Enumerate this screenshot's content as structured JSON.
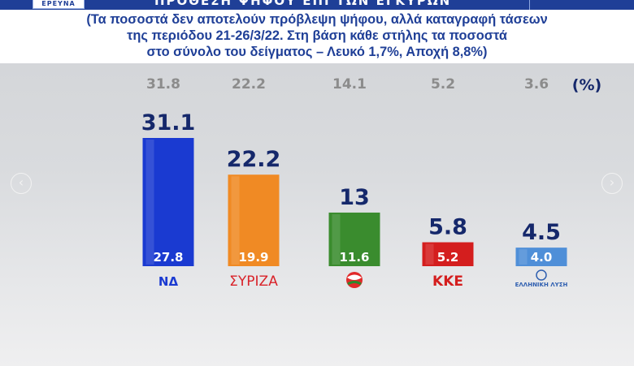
{
  "header": {
    "badge": "ΕΡΕΥΝΑ",
    "title": "ΠΡΟΘΕΣΗ ΨΗΦΟΥ ΕΠΙ ΤΩΝ ΕΓΚΥΡΩΝ",
    "note_lines": [
      "(Τα ποσοστά δεν αποτελούν πρόβλεψη ψήφου, αλλά καταγραφή τάσεων",
      "της περιόδου 21-26/3/22. Στη βάση κάθε στήλης τα ποσοστά",
      "στο σύνολο του δείγματος – Λευκό 1,7%, Αποχή 8,8%)"
    ]
  },
  "navigation": {
    "prev": "‹",
    "next": "›"
  },
  "colors": {
    "label": "#15286b",
    "previous": "#8c8c8c",
    "parties": [
      "#1a3ad1",
      "#f08a24",
      "#3a8c2e",
      "#d41e1e",
      "#4f8fd8"
    ]
  },
  "chart_data": {
    "type": "bar",
    "categories": [
      "ΝΔ",
      "ΣΥΡΙΖΑ",
      "ΠΑΣΟΚ-ΚΙΝΑΛ",
      "ΚΚΕ",
      "ΕΛΛΗΝΙΚΗ ΛΥΣΗ"
    ],
    "logo_texts": [
      "ΝΔ",
      "ΣΥΡΙΖΑ",
      "",
      "ΚΚΕ",
      "ΕΛΛΗΝΙΚΗ ΛΥΣΗ"
    ],
    "series": [
      {
        "values": [
          31.1,
          22.2,
          13,
          5.8,
          4.5
        ]
      },
      {
        "values": [
          27.8,
          19.9,
          11.6,
          5.2,
          4.0
        ]
      },
      {
        "values": [
          31.8,
          22.2,
          14.1,
          5.2,
          3.6
        ]
      }
    ],
    "value_labels": [
      "31.1",
      "22.2",
      "13",
      "5.8",
      "4.5"
    ],
    "base_labels": [
      "27.8",
      "19.9",
      "11.6",
      "5.2",
      "4.0"
    ],
    "previous_labels": [
      "31.8",
      "22.2",
      "14.1",
      "5.2",
      "3.6"
    ],
    "unit_label": "(%)",
    "ylim": [
      0,
      32
    ],
    "legend": "none",
    "grid": false
  }
}
